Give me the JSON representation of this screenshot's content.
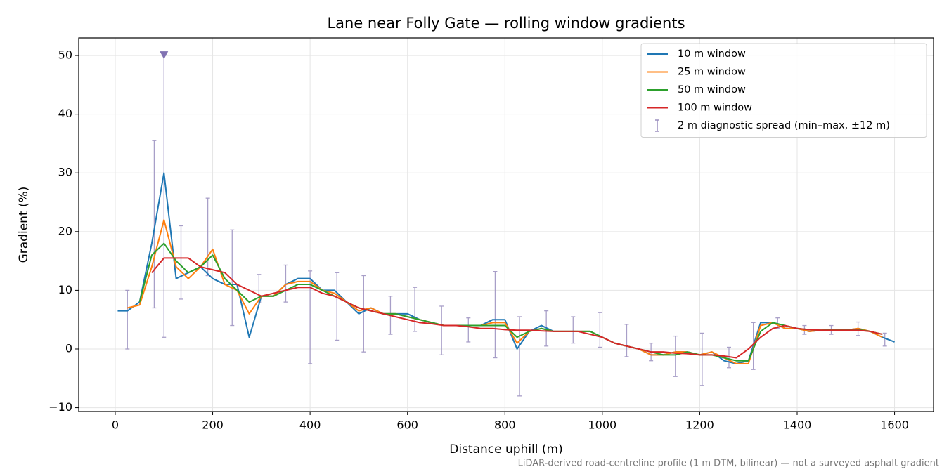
{
  "chart_data": {
    "type": "line",
    "title": "Lane near Folly Gate — rolling window gradients",
    "xlabel": "Distance uphill (m)",
    "ylabel": "Gradient (%)",
    "footnote": "LiDAR-derived road-centreline profile (1 m DTM, bilinear) — not a surveyed asphalt gradient",
    "xlim": [
      -75,
      1680
    ],
    "ylim": [
      -10.65,
      53
    ],
    "xticks": [
      0,
      200,
      400,
      600,
      800,
      1000,
      1200,
      1400,
      1600
    ],
    "yticks": [
      {
        "value": -10,
        "label": "−10"
      },
      0,
      10,
      20,
      30,
      40,
      50
    ],
    "grid": true,
    "legend": "upper right",
    "x": [
      5,
      25,
      50,
      75,
      100,
      125,
      150,
      175,
      200,
      225,
      250,
      275,
      300,
      325,
      350,
      375,
      400,
      425,
      450,
      475,
      500,
      525,
      550,
      575,
      600,
      625,
      650,
      675,
      700,
      725,
      750,
      775,
      800,
      825,
      850,
      875,
      900,
      925,
      950,
      975,
      1000,
      1025,
      1050,
      1075,
      1100,
      1125,
      1150,
      1175,
      1200,
      1225,
      1250,
      1275,
      1300,
      1325,
      1350,
      1375,
      1400,
      1425,
      1450,
      1475,
      1500,
      1525,
      1550,
      1575,
      1600
    ],
    "series": [
      {
        "name": "10 m window",
        "color": "#1f77b4",
        "values": [
          6.5,
          6.5,
          8,
          18,
          30,
          12,
          13,
          14,
          12,
          11,
          11,
          2,
          9,
          9,
          11,
          12,
          12,
          10,
          10,
          8,
          6,
          7,
          6,
          6,
          6,
          5,
          4.5,
          4,
          4,
          4,
          4,
          5,
          5,
          0,
          3,
          4,
          3,
          3,
          3,
          3,
          2,
          1,
          0.5,
          0,
          -1,
          -1,
          -0.5,
          -0.5,
          -1,
          -0.5,
          -2,
          -2.5,
          -2,
          4.5,
          4.5,
          3.5,
          3.5,
          3,
          3.2,
          3.3,
          3.2,
          3.5,
          3,
          2,
          1.2
        ]
      },
      {
        "name": "25 m window",
        "color": "#ff7f0e",
        "values": [
          null,
          7,
          7.5,
          14,
          22,
          14,
          12,
          14,
          17,
          11,
          10,
          6,
          9,
          9,
          11,
          11.5,
          11.5,
          10,
          9.5,
          8,
          6.5,
          7,
          6,
          6,
          5.5,
          5,
          4.5,
          4,
          4,
          4,
          4,
          4.5,
          4.5,
          1,
          3,
          3.5,
          3,
          3,
          3,
          3,
          2,
          1,
          0.5,
          0,
          -1,
          -1,
          -0.5,
          -0.5,
          -1,
          -0.5,
          -1.5,
          -2.5,
          -2.5,
          4,
          4.5,
          3.5,
          3.5,
          3,
          3.2,
          3.3,
          3.2,
          3.5,
          3,
          2,
          null
        ]
      },
      {
        "name": "50 m window",
        "color": "#2ca02c",
        "values": [
          null,
          null,
          8,
          16,
          18,
          15,
          13,
          14,
          16,
          12,
          10,
          8,
          9,
          9,
          10,
          11,
          11,
          10,
          9,
          8,
          7,
          6.5,
          6,
          6,
          5.5,
          5,
          4.5,
          4,
          4,
          4,
          4,
          4,
          4,
          2,
          3,
          3.5,
          3,
          3,
          3,
          3,
          2,
          1,
          0.5,
          0,
          -0.5,
          -1,
          -1,
          -0.5,
          -1,
          -1,
          -1.5,
          -2,
          -2,
          3,
          4.5,
          4,
          3.5,
          3.3,
          3.2,
          3.3,
          3.3,
          3.3,
          3,
          2.5,
          null
        ]
      },
      {
        "name": "100 m window",
        "color": "#d62728",
        "values": [
          null,
          null,
          null,
          13,
          15.5,
          15.5,
          15.5,
          14,
          13.5,
          13,
          11,
          10,
          9,
          9.5,
          10,
          10.5,
          10.5,
          9.5,
          9,
          8,
          7,
          6.5,
          6,
          5.5,
          5,
          4.5,
          4.3,
          4,
          4,
          3.8,
          3.5,
          3.5,
          3.3,
          3.2,
          3.2,
          3.1,
          3,
          3,
          3,
          2.5,
          2,
          1,
          0.5,
          0,
          -0.5,
          -0.5,
          -0.7,
          -0.8,
          -1,
          -1,
          -1.2,
          -1.5,
          0,
          2,
          3.5,
          4,
          3.5,
          3.3,
          3.2,
          3.2,
          3.2,
          3.2,
          3,
          2.5,
          null
        ]
      }
    ],
    "errorbars": {
      "name": "2 m diagnostic spread (min–max, ±12 m)",
      "color": "#9a8fbf",
      "x": [
        25,
        80,
        100,
        135,
        190,
        240,
        295,
        350,
        400,
        455,
        510,
        565,
        615,
        670,
        725,
        780,
        830,
        885,
        940,
        995,
        1050,
        1100,
        1150,
        1205,
        1260,
        1310,
        1360,
        1415,
        1470,
        1525,
        1580
      ],
      "low": [
        0,
        7,
        2,
        8.5,
        12.5,
        4,
        8,
        8,
        -2.5,
        1.5,
        -0.5,
        2.5,
        3,
        -1,
        1.2,
        -1.5,
        -8,
        0.5,
        1,
        0.3,
        -1.3,
        -2,
        -4.7,
        -6.2,
        -3.2,
        -3.5,
        3.5,
        2.5,
        2.5,
        2.3,
        0.5
      ],
      "high": [
        10,
        35.5,
        50,
        21,
        25.7,
        20.3,
        12.7,
        14.3,
        13.3,
        13,
        12.5,
        9,
        10.5,
        7.3,
        5.3,
        13.2,
        5.5,
        6.5,
        5.5,
        6.2,
        4.2,
        1,
        2.2,
        2.7,
        0.3,
        4.5,
        5.3,
        4,
        4,
        4.6,
        2.7
      ]
    },
    "markers": [
      {
        "x": 100,
        "y": 50,
        "color": "#8172b2"
      }
    ]
  }
}
